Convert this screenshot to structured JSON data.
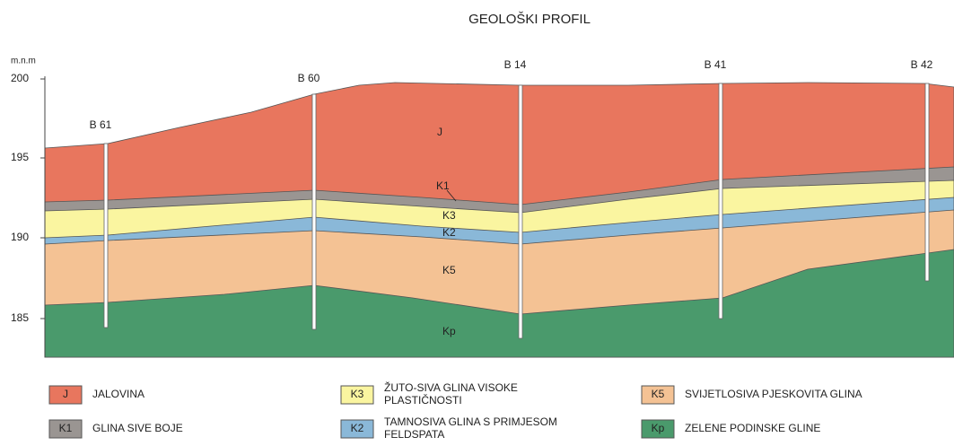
{
  "title": "GEOLOŠKI PROFIL",
  "axis_unit": "m.n.m",
  "yticks": [
    200,
    195,
    190,
    185
  ],
  "boreholes": [
    "B 61",
    "B 60",
    "B 14",
    "B 41",
    "B 42"
  ],
  "layer_labels": [
    "J",
    "K1",
    "K3",
    "K2",
    "K5",
    "Kp"
  ],
  "legend": [
    {
      "code": "J",
      "lines": [
        "JALOVINA"
      ]
    },
    {
      "code": "K1",
      "lines": [
        "GLINA SIVE BOJE"
      ]
    },
    {
      "code": "K3",
      "lines": [
        "ŽUTO-SIVA GLINA VISOKE",
        "PLASTIČNOSTI"
      ]
    },
    {
      "code": "K2",
      "lines": [
        "TAMNOSIVA GLINA S PRIMJESOM",
        "FELDSPATA"
      ]
    },
    {
      "code": "K5",
      "lines": [
        "SVIJETLOSIVA PJESKOVITA GLINA"
      ]
    },
    {
      "code": "Kp",
      "lines": [
        "ZELENE PODINSKE GLINE"
      ]
    }
  ]
}
